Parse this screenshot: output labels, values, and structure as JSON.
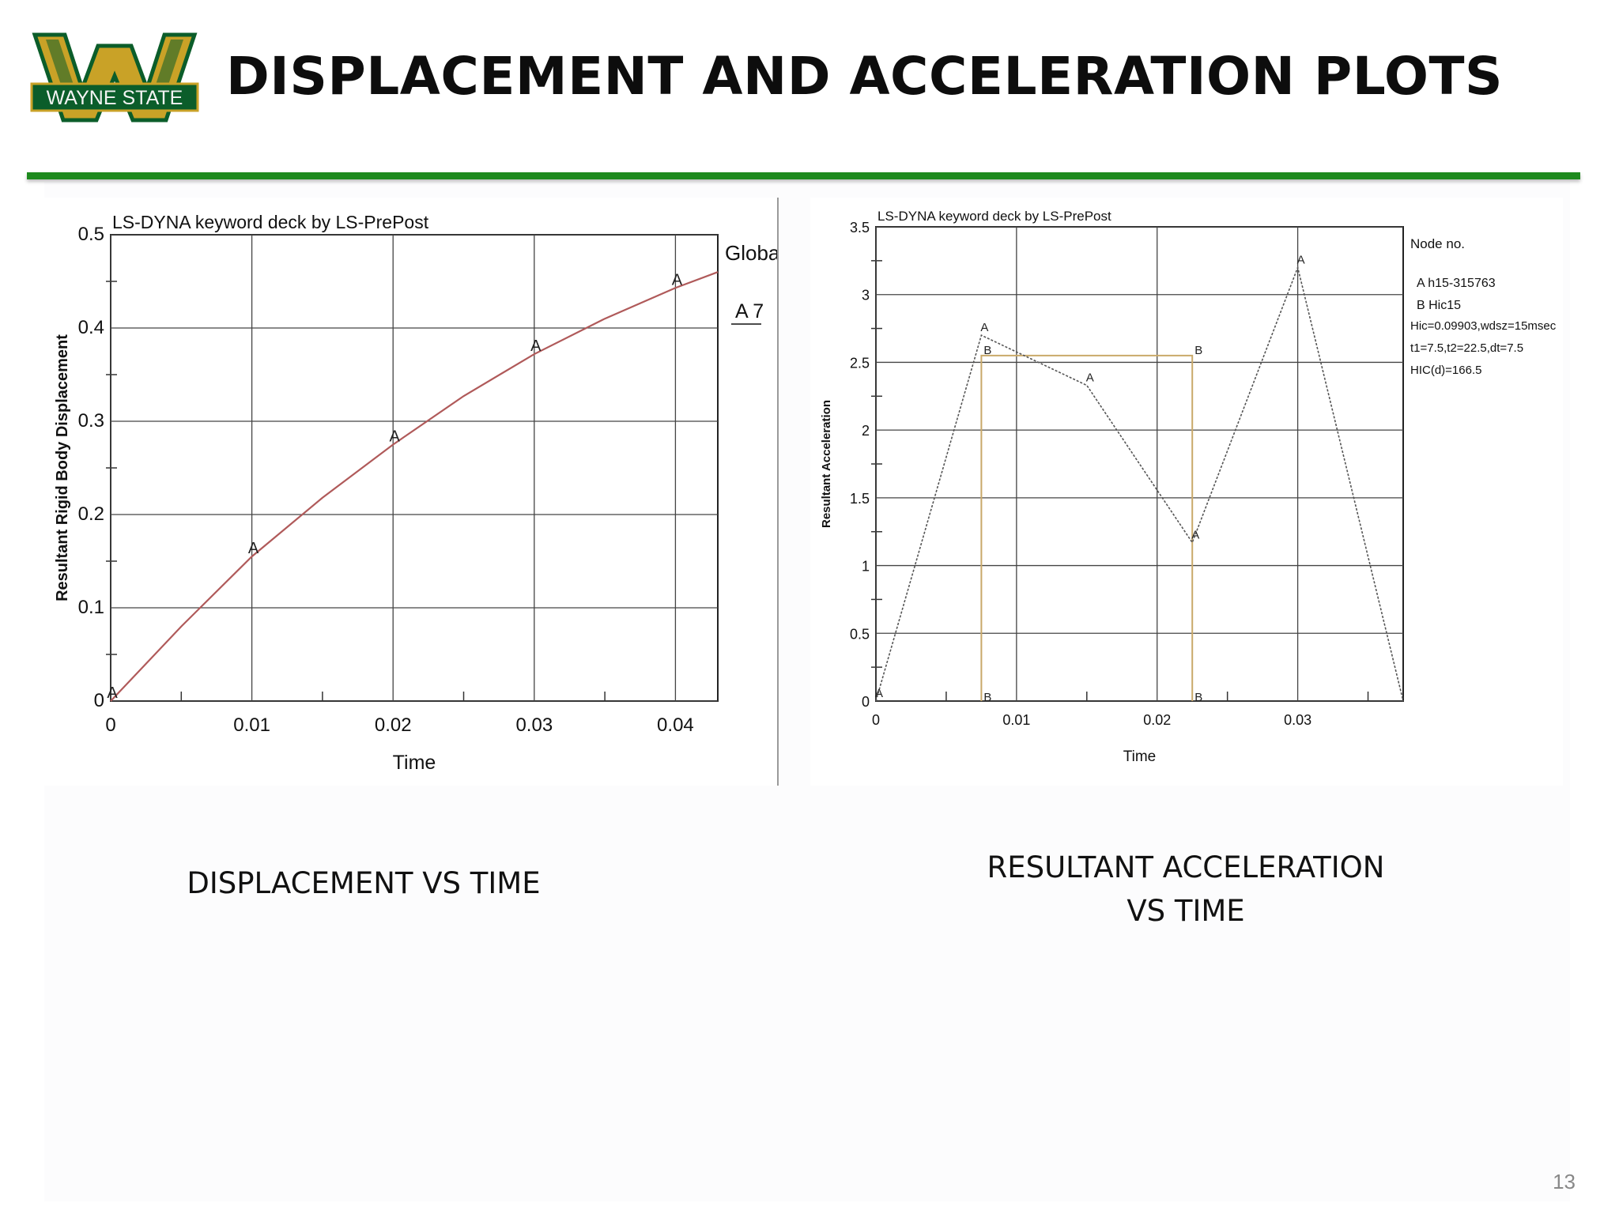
{
  "slide": {
    "title": "DISPLACEMENT AND ACCELERATION PLOTS",
    "logo_text": "WAYNE STATE",
    "page_number": "13",
    "accent_color": "#1e8a1e",
    "logo_gold": "#c9a227",
    "logo_green": "#0b5d2a"
  },
  "captions": {
    "left": "DISPLACEMENT VS TIME",
    "right_line1": "RESULTANT ACCELERATION",
    "right_line2": "VS TIME"
  },
  "chart_data": [
    {
      "type": "line",
      "title": "LS-DYNA keyword deck by LS-PrePost",
      "xlabel": "Time",
      "ylabel": "Resultant Rigid Body Displacement",
      "xlim": [
        0,
        0.043
      ],
      "ylim": [
        0,
        0.5
      ],
      "xticks": [
        "0",
        "0.01",
        "0.02",
        "0.03",
        "0.04"
      ],
      "yticks": [
        "0",
        "0.1",
        "0.2",
        "0.3",
        "0.4",
        "0.5"
      ],
      "grid": true,
      "legend_title": "Global",
      "legend_position": "top-right",
      "series": [
        {
          "name": "A 7",
          "color": "#b05a5a",
          "marker_label": "A",
          "x": [
            0,
            0.005,
            0.01,
            0.015,
            0.02,
            0.025,
            0.03,
            0.035,
            0.04,
            0.043
          ],
          "y": [
            0,
            0.08,
            0.155,
            0.218,
            0.275,
            0.327,
            0.372,
            0.41,
            0.443,
            0.46
          ],
          "markers_x": [
            0,
            0.01,
            0.02,
            0.03,
            0.04
          ],
          "markers_y": [
            0,
            0.155,
            0.275,
            0.372,
            0.443
          ]
        }
      ]
    },
    {
      "type": "line",
      "title": "LS-DYNA keyword deck by LS-PrePost",
      "xlabel": "Time",
      "ylabel": "Resultant Acceleration",
      "xlim": [
        0,
        0.0375
      ],
      "ylim": [
        0,
        3.5
      ],
      "xticks": [
        "0",
        "0.01",
        "0.02",
        "0.03"
      ],
      "yticks": [
        "0",
        "0.5",
        "1",
        "1.5",
        "2",
        "2.5",
        "3",
        "3.5"
      ],
      "grid": true,
      "legend_position": "top-right",
      "legend": {
        "title": "Node no.",
        "entries": [
          "A  h15-315763",
          "B  Hic15"
        ],
        "notes": [
          "Hic=0.09903,wdsz=15msec",
          "t1=7.5,t2=22.5,dt=7.5",
          "HIC(d)=166.5"
        ]
      },
      "series": [
        {
          "name": "h15-315763",
          "color": "#555555",
          "marker_label": "A",
          "x": [
            0,
            0.0075,
            0.015,
            0.0225,
            0.03,
            0.0375
          ],
          "y": [
            0,
            2.7,
            2.33,
            1.17,
            3.2,
            0
          ]
        },
        {
          "name": "Hic15",
          "color": "#c9a96a",
          "marker_label": "B",
          "x": [
            0.0075,
            0.0075,
            0.0225,
            0.0225
          ],
          "y": [
            0,
            2.55,
            2.55,
            0
          ]
        }
      ]
    }
  ]
}
